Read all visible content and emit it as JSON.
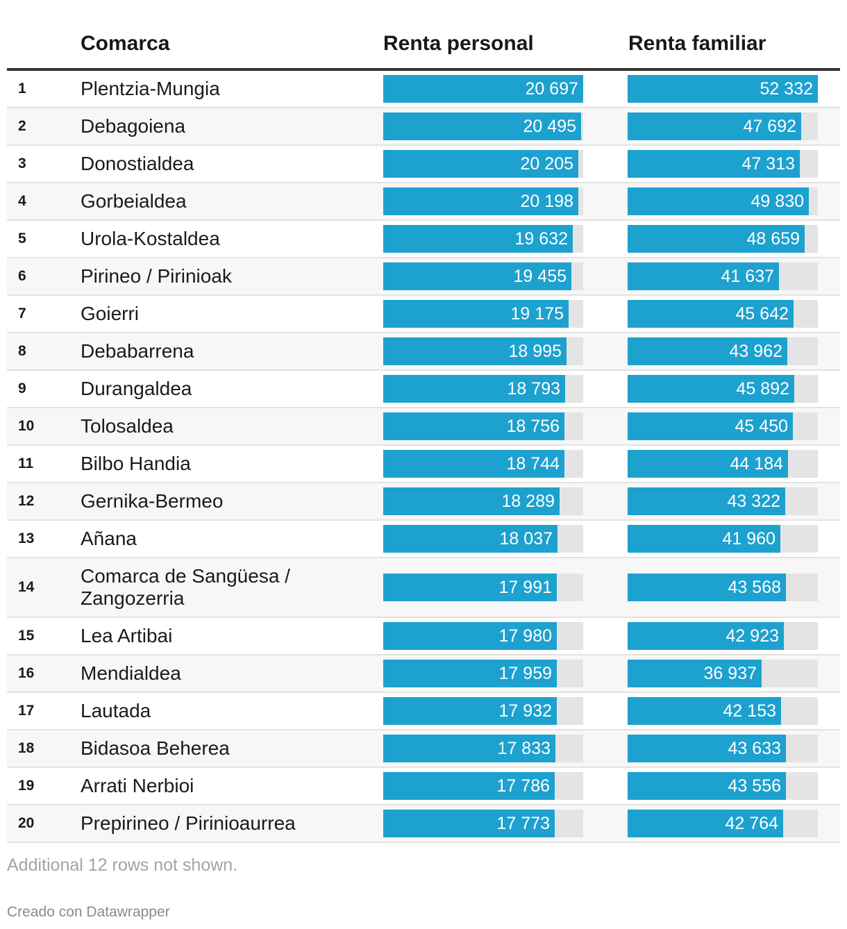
{
  "chart_data": {
    "type": "table",
    "columns": [
      "Comarca",
      "Renta personal",
      "Renta familiar"
    ],
    "personal_max": 20697,
    "familiar_max": 52332,
    "rows": [
      {
        "rank": "1",
        "name": "Plentzia-Mungia",
        "personal": 20697,
        "personal_label": "20 697",
        "familiar": 52332,
        "familiar_label": "52 332"
      },
      {
        "rank": "2",
        "name": "Debagoiena",
        "personal": 20495,
        "personal_label": "20 495",
        "familiar": 47692,
        "familiar_label": "47 692"
      },
      {
        "rank": "3",
        "name": "Donostialdea",
        "personal": 20205,
        "personal_label": "20 205",
        "familiar": 47313,
        "familiar_label": "47 313"
      },
      {
        "rank": "4",
        "name": "Gorbeialdea",
        "personal": 20198,
        "personal_label": "20 198",
        "familiar": 49830,
        "familiar_label": "49 830"
      },
      {
        "rank": "5",
        "name": "Urola-Kostaldea",
        "personal": 19632,
        "personal_label": "19 632",
        "familiar": 48659,
        "familiar_label": "48 659"
      },
      {
        "rank": "6",
        "name": "Pirineo / Pirinioak",
        "personal": 19455,
        "personal_label": "19 455",
        "familiar": 41637,
        "familiar_label": "41 637"
      },
      {
        "rank": "7",
        "name": "Goierri",
        "personal": 19175,
        "personal_label": "19 175",
        "familiar": 45642,
        "familiar_label": "45 642"
      },
      {
        "rank": "8",
        "name": "Debabarrena",
        "personal": 18995,
        "personal_label": "18 995",
        "familiar": 43962,
        "familiar_label": "43 962"
      },
      {
        "rank": "9",
        "name": "Durangaldea",
        "personal": 18793,
        "personal_label": "18 793",
        "familiar": 45892,
        "familiar_label": "45 892"
      },
      {
        "rank": "10",
        "name": "Tolosaldea",
        "personal": 18756,
        "personal_label": "18 756",
        "familiar": 45450,
        "familiar_label": "45 450"
      },
      {
        "rank": "11",
        "name": "Bilbo Handia",
        "personal": 18744,
        "personal_label": "18 744",
        "familiar": 44184,
        "familiar_label": "44 184"
      },
      {
        "rank": "12",
        "name": "Gernika-Bermeo",
        "personal": 18289,
        "personal_label": "18 289",
        "familiar": 43322,
        "familiar_label": "43 322"
      },
      {
        "rank": "13",
        "name": "Añana",
        "personal": 18037,
        "personal_label": "18 037",
        "familiar": 41960,
        "familiar_label": "41 960"
      },
      {
        "rank": "14",
        "name": "Comarca de Sangüesa / Zangozerria",
        "personal": 17991,
        "personal_label": "17 991",
        "familiar": 43568,
        "familiar_label": "43 568"
      },
      {
        "rank": "15",
        "name": "Lea Artibai",
        "personal": 17980,
        "personal_label": "17 980",
        "familiar": 42923,
        "familiar_label": "42 923"
      },
      {
        "rank": "16",
        "name": "Mendialdea",
        "personal": 17959,
        "personal_label": "17 959",
        "familiar": 36937,
        "familiar_label": "36 937"
      },
      {
        "rank": "17",
        "name": "Lautada",
        "personal": 17932,
        "personal_label": "17 932",
        "familiar": 42153,
        "familiar_label": "42 153"
      },
      {
        "rank": "18",
        "name": "Bidasoa Beherea",
        "personal": 17833,
        "personal_label": "17 833",
        "familiar": 43633,
        "familiar_label": "43 633"
      },
      {
        "rank": "19",
        "name": "Arrati Nerbioi",
        "personal": 17786,
        "personal_label": "17 786",
        "familiar": 43556,
        "familiar_label": "43 556"
      },
      {
        "rank": "20",
        "name": "Prepirineo / Pirinioaurrea",
        "personal": 17773,
        "personal_label": "17 773",
        "familiar": 42764,
        "familiar_label": "42 764"
      }
    ],
    "note": "Additional 12 rows not shown.",
    "credit": "Creado con Datawrapper",
    "colors": {
      "bar": "#1da1cf",
      "track": "#e4e4e4",
      "header_rule": "#333333"
    }
  }
}
